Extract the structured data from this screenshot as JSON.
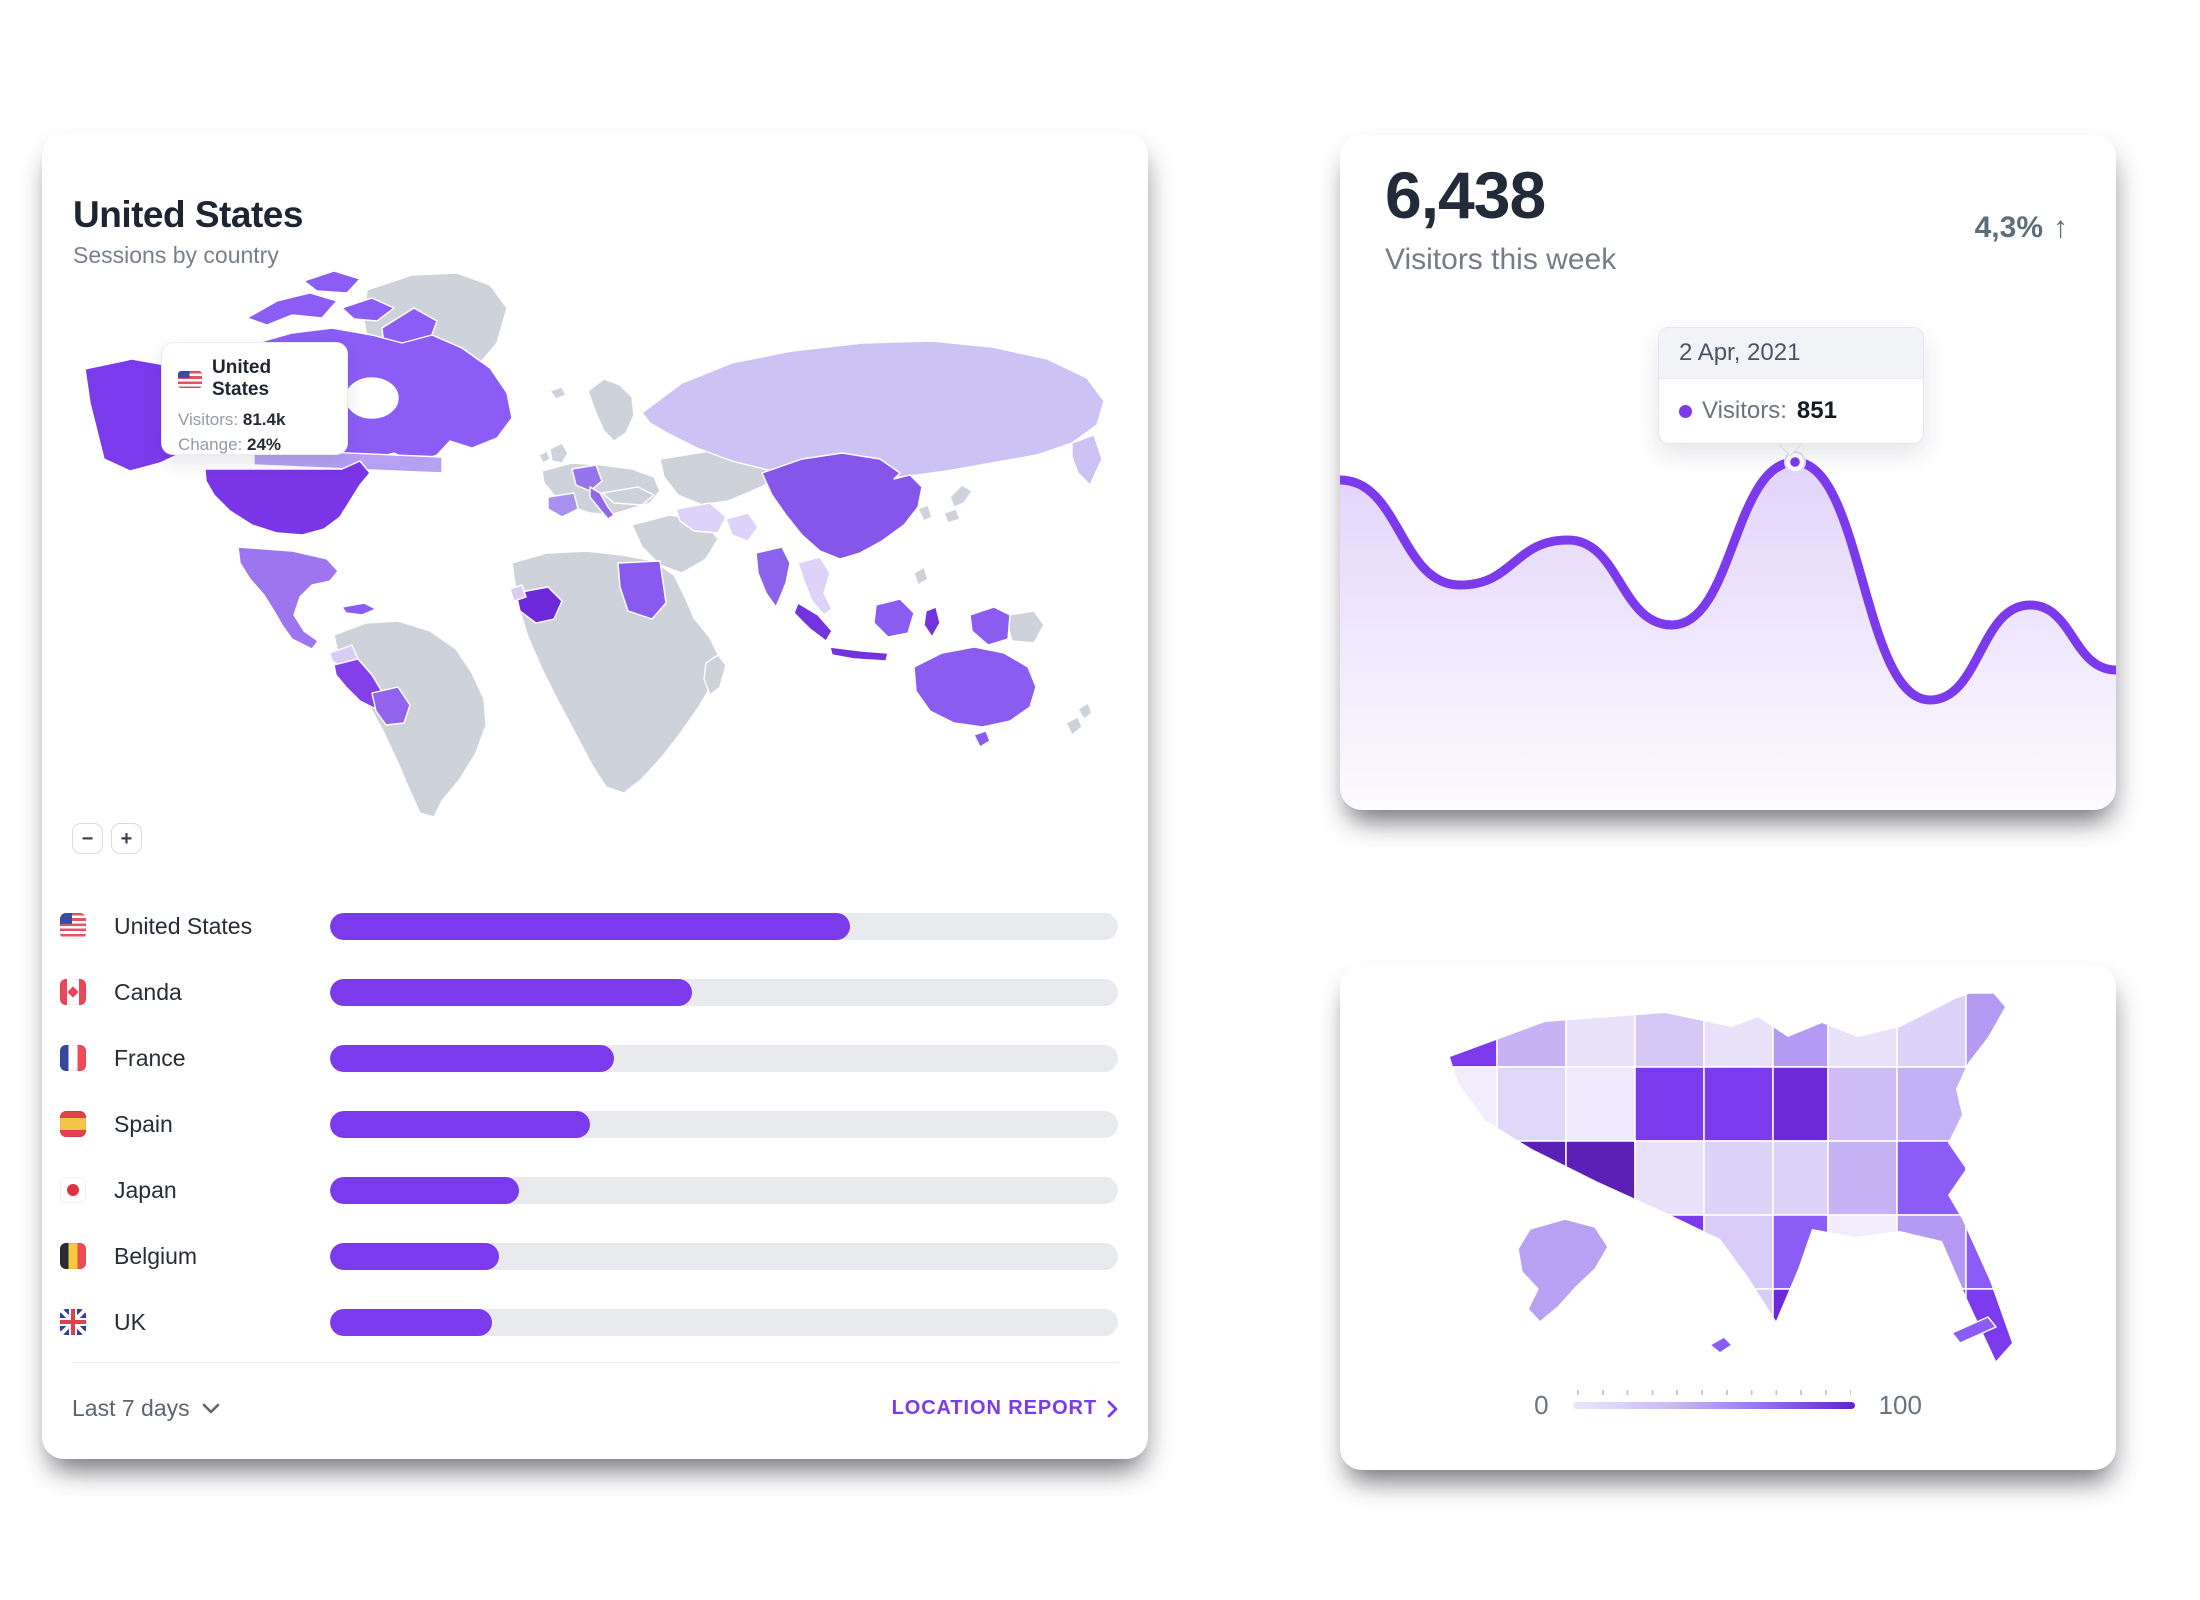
{
  "theme": {
    "accent": "#7c3aed",
    "accent_dark": "#6d28d9",
    "accent_darker": "#5b21b6",
    "accent_medium": "#8b5cf6",
    "accent_light": "#c4b5fd",
    "accent_lightest": "#f1edfc",
    "bar_track": "#e9eaee",
    "text_dark": "#1e2532",
    "text_gray": "#76808c"
  },
  "sessions_card": {
    "title": "United States",
    "subtitle": "Sessions by country",
    "map_tooltip": {
      "flag": "us",
      "country": "United States",
      "visitors_label": "Visitors:",
      "visitors_value": "81.4k",
      "change_label": "Change:",
      "change_value": "24%"
    },
    "zoom_out_label": "−",
    "zoom_in_label": "+",
    "countries": [
      {
        "name": "United States",
        "flag": "us",
        "value_pct": 66
      },
      {
        "name": "Canda",
        "flag": "ca",
        "value_pct": 46
      },
      {
        "name": "France",
        "flag": "fr",
        "value_pct": 36
      },
      {
        "name": "Spain",
        "flag": "es",
        "value_pct": 33
      },
      {
        "name": "Japan",
        "flag": "jp",
        "value_pct": 24
      },
      {
        "name": "Belgium",
        "flag": "be",
        "value_pct": 21.5
      },
      {
        "name": "UK",
        "flag": "gb",
        "value_pct": 20.5
      }
    ],
    "chart_data": {
      "type": "bar",
      "categories": [
        "United States",
        "Canda",
        "France",
        "Spain",
        "Japan",
        "Belgium",
        "UK"
      ],
      "values": [
        66,
        46,
        36,
        33,
        24,
        21.5,
        20.5
      ],
      "title": "Sessions by country",
      "xlabel": "",
      "ylabel": "",
      "xlim": [
        0,
        100
      ]
    },
    "footer": {
      "range_label": "Last 7 days",
      "report_label": "LOCATION REPORT"
    }
  },
  "visitors_card": {
    "value": "6,438",
    "label": "Visitors this week",
    "delta": "4,3%",
    "delta_arrow": "↑",
    "tooltip": {
      "date": "2 Apr, 2021",
      "label": "Visitors:",
      "value": "851"
    },
    "chart_data": {
      "type": "area",
      "points": [
        [
          0,
          90
        ],
        [
          120,
          195
        ],
        [
          228,
          150
        ],
        [
          332,
          235
        ],
        [
          455,
          72
        ],
        [
          590,
          310
        ],
        [
          690,
          215
        ],
        [
          776,
          280
        ]
      ],
      "marker_index": 4,
      "marker": {
        "date": "2 Apr, 2021",
        "visitors": 851
      },
      "line_color": "#7c3aed",
      "legend_position": "none",
      "grid": false
    }
  },
  "us_map_card": {
    "chart_data": {
      "type": "heatmap",
      "title": "Visitors by state",
      "range": [
        0,
        100
      ]
    },
    "legend": {
      "min": "0",
      "max": "100"
    }
  }
}
